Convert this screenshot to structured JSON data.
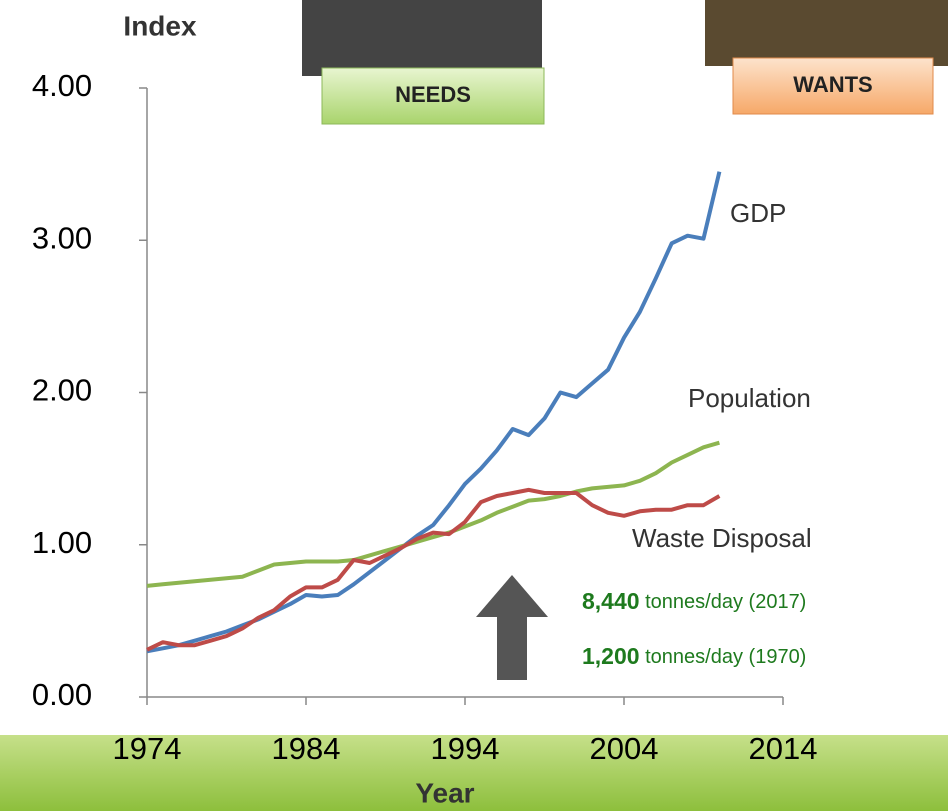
{
  "chart_data": {
    "type": "line",
    "y_axis_title": "Index",
    "x_axis_title": "Year",
    "x": [
      1974,
      1975,
      1976,
      1977,
      1978,
      1979,
      1980,
      1981,
      1982,
      1983,
      1984,
      1985,
      1986,
      1987,
      1988,
      1989,
      1990,
      1991,
      1992,
      1993,
      1994,
      1995,
      1996,
      1997,
      1998,
      1999,
      2000,
      2001,
      2002,
      2003,
      2004,
      2005,
      2006,
      2007,
      2008,
      2009,
      2010
    ],
    "series": [
      {
        "name": "GDP",
        "color": "#4a7ebb",
        "values": [
          0.3,
          0.32,
          0.34,
          0.37,
          0.4,
          0.43,
          0.47,
          0.51,
          0.56,
          0.61,
          0.67,
          0.66,
          0.67,
          0.74,
          0.82,
          0.9,
          0.98,
          1.06,
          1.13,
          1.26,
          1.4,
          1.5,
          1.62,
          1.76,
          1.72,
          1.83,
          2.0,
          1.97,
          2.06,
          2.15,
          2.36,
          2.53,
          2.75,
          2.98,
          3.03,
          3.01,
          3.45
        ]
      },
      {
        "name": "Population",
        "color": "#8db550",
        "values": [
          0.73,
          0.74,
          0.75,
          0.76,
          0.77,
          0.78,
          0.79,
          0.83,
          0.87,
          0.88,
          0.89,
          0.89,
          0.89,
          0.9,
          0.93,
          0.96,
          0.99,
          1.02,
          1.05,
          1.08,
          1.12,
          1.16,
          1.21,
          1.25,
          1.29,
          1.3,
          1.32,
          1.35,
          1.37,
          1.38,
          1.39,
          1.42,
          1.47,
          1.54,
          1.59,
          1.64,
          1.67
        ]
      },
      {
        "name": "Waste Disposal",
        "color": "#be4b48",
        "values": [
          0.31,
          0.36,
          0.34,
          0.34,
          0.37,
          0.4,
          0.45,
          0.52,
          0.57,
          0.66,
          0.72,
          0.72,
          0.77,
          0.9,
          0.88,
          0.93,
          0.98,
          1.04,
          1.08,
          1.07,
          1.15,
          1.28,
          1.32,
          1.34,
          1.36,
          1.34,
          1.34,
          1.34,
          1.26,
          1.21,
          1.19,
          1.22,
          1.23,
          1.23,
          1.26,
          1.26,
          1.32
        ]
      }
    ],
    "xlim": [
      1974,
      2014
    ],
    "xticks": [
      1974,
      1984,
      1994,
      2004,
      2014
    ],
    "ylim": [
      0,
      4
    ],
    "yticks": [
      {
        "value": 0,
        "label": "0.00"
      },
      {
        "value": 1,
        "label": "1.00"
      },
      {
        "value": 2,
        "label": "2.00"
      },
      {
        "value": 3,
        "label": "3.00"
      },
      {
        "value": 4,
        "label": "4.00"
      }
    ],
    "grid": false,
    "annotations": [
      {
        "bold": "8,440",
        "text": "tonnes/day (2017)"
      },
      {
        "bold": "1,200",
        "text": "tonnes/day (1970)"
      }
    ],
    "image_labels": [
      "NEEDS",
      "WANTS"
    ]
  }
}
